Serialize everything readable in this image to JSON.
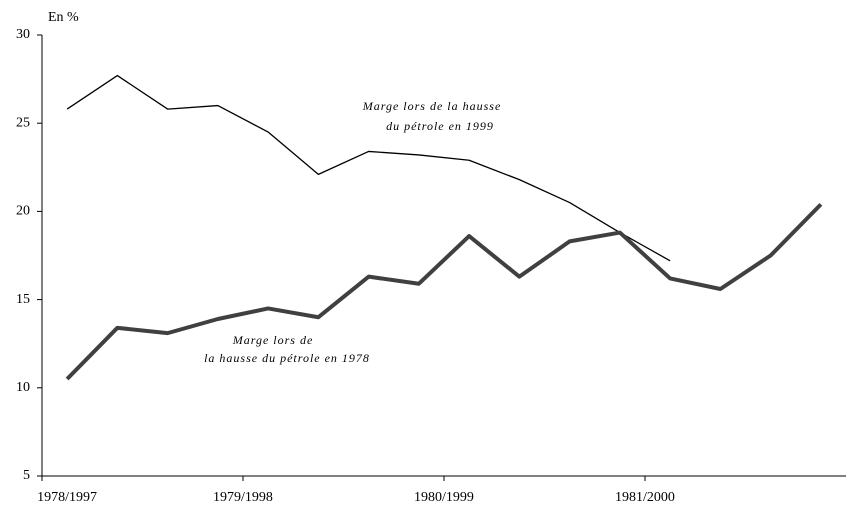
{
  "chart_data": {
    "type": "line",
    "y_axis_label": "En %",
    "categories": [
      null,
      null,
      null,
      null,
      null,
      null,
      null,
      null,
      null,
      null,
      null,
      null,
      null,
      null,
      null,
      null
    ],
    "x_group_labels": [
      "1978/1997",
      "1979/1998",
      "1980/1999",
      "1981/2000"
    ],
    "ylim": [
      5,
      30
    ],
    "yticks": [
      5,
      10,
      15,
      20,
      25,
      30
    ],
    "series": [
      {
        "name": "Marge lors de la hausse du pétrole en 1999",
        "color": "#000000",
        "width": 1.3,
        "values": [
          25.8,
          27.7,
          25.8,
          26.0,
          24.5,
          22.1,
          23.4,
          23.2,
          22.9,
          21.8,
          20.5,
          18.8,
          17.2,
          null,
          null,
          null
        ]
      },
      {
        "name": "Marge lors de la hausse du pétrole en 1978",
        "color": "#404040",
        "width": 4,
        "values": [
          10.5,
          13.4,
          13.1,
          13.9,
          14.5,
          14.0,
          16.3,
          15.9,
          18.6,
          16.3,
          18.3,
          18.8,
          16.2,
          15.6,
          17.5,
          20.4
        ]
      }
    ],
    "annotations": [
      {
        "lines": [
          "Marge lors de la hausse",
          "du pétrole en 1999"
        ]
      },
      {
        "lines": [
          "Marge lors de",
          "la hausse du pétrole en 1978"
        ]
      }
    ]
  }
}
